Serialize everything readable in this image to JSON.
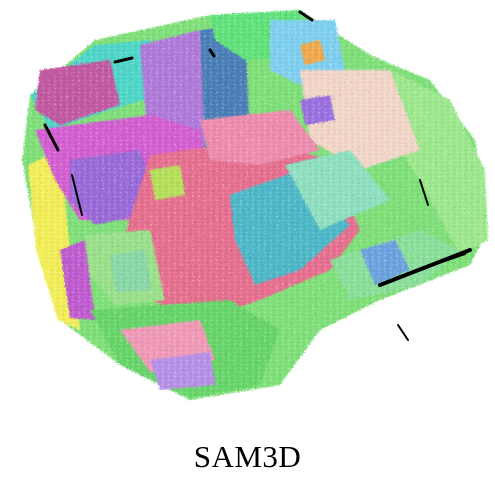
{
  "figure": {
    "caption": "SAM3D"
  }
}
